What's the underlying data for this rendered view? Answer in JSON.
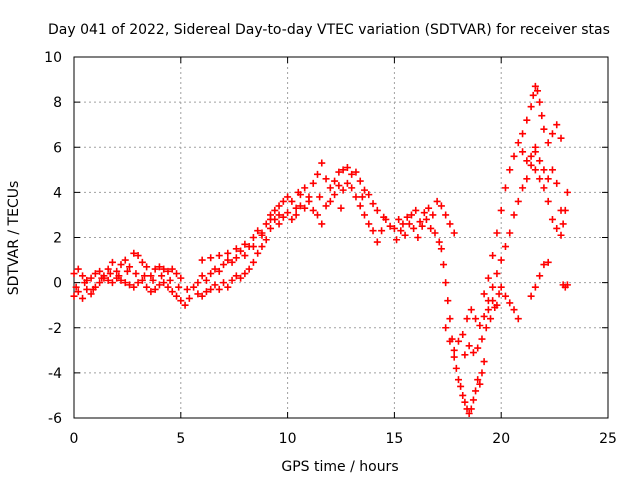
{
  "chart_data": {
    "type": "scatter",
    "title": "Day 041 of 2022, Sidereal Day-to-day VTEC variation (SDTVAR) for receiver stas",
    "xlabel": "GPS time / hours",
    "ylabel": "SDTVAR / TECUs",
    "xlim": [
      0,
      25
    ],
    "ylim": [
      -6,
      10
    ],
    "xticks": [
      "0",
      "5",
      "10",
      "15",
      "20",
      "25"
    ],
    "yticks": [
      "10",
      "8",
      "6",
      "4",
      "2",
      "0",
      "-2",
      "-4",
      "-6"
    ],
    "grid": true,
    "marker": "+",
    "color": "#ff0000",
    "series": [
      {
        "name": "SDTVAR",
        "points": [
          [
            0.0,
            0.4
          ],
          [
            0.2,
            0.6
          ],
          [
            0.4,
            0.3
          ],
          [
            0.6,
            0.1
          ],
          [
            0.8,
            0.2
          ],
          [
            1.0,
            0.4
          ],
          [
            1.2,
            0.5
          ],
          [
            1.4,
            0.2
          ],
          [
            1.6,
            0.6
          ],
          [
            1.8,
            0.9
          ],
          [
            2.0,
            0.5
          ],
          [
            2.2,
            0.8
          ],
          [
            2.4,
            1.0
          ],
          [
            2.6,
            0.7
          ],
          [
            2.8,
            1.3
          ],
          [
            3.0,
            1.2
          ],
          [
            3.2,
            0.9
          ],
          [
            3.4,
            0.7
          ],
          [
            3.6,
            0.3
          ],
          [
            3.8,
            0.6
          ],
          [
            4.0,
            0.7
          ],
          [
            4.2,
            0.6
          ],
          [
            4.4,
            0.5
          ],
          [
            4.6,
            0.6
          ],
          [
            4.8,
            0.4
          ],
          [
            5.0,
            0.2
          ],
          [
            0.0,
            -0.6
          ],
          [
            0.2,
            -0.4
          ],
          [
            0.4,
            -0.7
          ],
          [
            0.6,
            -0.3
          ],
          [
            0.8,
            -0.5
          ],
          [
            1.0,
            -0.2
          ],
          [
            1.2,
            0.0
          ],
          [
            1.4,
            0.3
          ],
          [
            1.6,
            0.1
          ],
          [
            1.8,
            0.0
          ],
          [
            2.0,
            0.2
          ],
          [
            2.2,
            0.1
          ],
          [
            2.4,
            0.0
          ],
          [
            2.6,
            -0.1
          ],
          [
            2.8,
            -0.2
          ],
          [
            3.0,
            0.0
          ],
          [
            3.2,
            0.1
          ],
          [
            3.4,
            -0.2
          ],
          [
            3.6,
            -0.4
          ],
          [
            3.8,
            -0.3
          ],
          [
            4.0,
            -0.1
          ],
          [
            4.2,
            0.0
          ],
          [
            4.4,
            -0.2
          ],
          [
            4.6,
            -0.4
          ],
          [
            4.8,
            -0.6
          ],
          [
            5.0,
            -0.8
          ],
          [
            5.2,
            -1.0
          ],
          [
            5.4,
            -0.7
          ],
          [
            0.1,
            -0.2
          ],
          [
            0.5,
            0.0
          ],
          [
            0.9,
            -0.3
          ],
          [
            1.3,
            0.2
          ],
          [
            1.7,
            0.4
          ],
          [
            2.1,
            0.3
          ],
          [
            2.5,
            0.5
          ],
          [
            2.9,
            0.4
          ],
          [
            3.3,
            0.3
          ],
          [
            3.7,
            0.1
          ],
          [
            4.1,
            0.3
          ],
          [
            4.5,
            0.1
          ],
          [
            4.9,
            -0.2
          ],
          [
            5.3,
            -0.3
          ],
          [
            5.6,
            -0.2
          ],
          [
            5.8,
            0.0
          ],
          [
            6.0,
            0.3
          ],
          [
            6.2,
            0.1
          ],
          [
            6.4,
            0.4
          ],
          [
            6.6,
            0.6
          ],
          [
            6.8,
            0.5
          ],
          [
            7.0,
            0.8
          ],
          [
            7.2,
            1.0
          ],
          [
            7.4,
            0.9
          ],
          [
            7.6,
            1.1
          ],
          [
            7.8,
            1.4
          ],
          [
            8.0,
            1.2
          ],
          [
            8.2,
            1.6
          ],
          [
            8.4,
            2.0
          ],
          [
            8.6,
            2.3
          ],
          [
            8.8,
            2.1
          ],
          [
            9.0,
            2.6
          ],
          [
            9.2,
            3.0
          ],
          [
            9.4,
            3.2
          ],
          [
            9.6,
            3.0
          ],
          [
            9.8,
            3.6
          ],
          [
            10.0,
            3.8
          ],
          [
            5.8,
            -0.5
          ],
          [
            6.0,
            -0.6
          ],
          [
            6.2,
            -0.4
          ],
          [
            6.4,
            -0.3
          ],
          [
            6.6,
            -0.1
          ],
          [
            6.8,
            -0.3
          ],
          [
            7.0,
            0.0
          ],
          [
            7.2,
            -0.2
          ],
          [
            7.4,
            0.1
          ],
          [
            7.6,
            0.3
          ],
          [
            7.8,
            0.2
          ],
          [
            8.0,
            0.4
          ],
          [
            8.2,
            0.6
          ],
          [
            8.4,
            0.9
          ],
          [
            8.6,
            1.3
          ],
          [
            8.8,
            1.6
          ],
          [
            9.0,
            1.9
          ],
          [
            9.2,
            2.4
          ],
          [
            9.4,
            2.8
          ],
          [
            9.6,
            2.6
          ],
          [
            9.8,
            2.9
          ],
          [
            10.0,
            3.1
          ],
          [
            6.0,
            1.0
          ],
          [
            6.4,
            1.1
          ],
          [
            6.8,
            1.2
          ],
          [
            7.2,
            1.3
          ],
          [
            7.6,
            1.5
          ],
          [
            8.0,
            1.7
          ],
          [
            8.4,
            1.6
          ],
          [
            8.8,
            2.2
          ],
          [
            9.2,
            2.8
          ],
          [
            9.6,
            3.4
          ],
          [
            10.2,
            3.6
          ],
          [
            10.4,
            3.3
          ],
          [
            10.6,
            3.9
          ],
          [
            10.8,
            4.2
          ],
          [
            11.0,
            3.8
          ],
          [
            11.2,
            4.4
          ],
          [
            11.4,
            4.8
          ],
          [
            11.6,
            5.3
          ],
          [
            11.8,
            4.6
          ],
          [
            12.0,
            4.2
          ],
          [
            12.2,
            4.5
          ],
          [
            12.4,
            4.9
          ],
          [
            12.6,
            5.0
          ],
          [
            12.8,
            5.1
          ],
          [
            13.0,
            4.8
          ],
          [
            13.2,
            4.9
          ],
          [
            13.4,
            4.5
          ],
          [
            13.6,
            4.1
          ],
          [
            13.8,
            3.9
          ],
          [
            14.0,
            3.5
          ],
          [
            14.2,
            3.2
          ],
          [
            10.2,
            2.8
          ],
          [
            10.4,
            3.0
          ],
          [
            10.6,
            3.4
          ],
          [
            10.8,
            3.3
          ],
          [
            11.0,
            3.6
          ],
          [
            11.2,
            3.2
          ],
          [
            11.4,
            3.0
          ],
          [
            11.6,
            2.6
          ],
          [
            11.8,
            3.4
          ],
          [
            12.0,
            3.6
          ],
          [
            12.2,
            3.9
          ],
          [
            12.4,
            4.3
          ],
          [
            12.6,
            4.1
          ],
          [
            12.8,
            4.4
          ],
          [
            13.0,
            4.2
          ],
          [
            13.2,
            3.8
          ],
          [
            13.4,
            3.4
          ],
          [
            13.6,
            3.0
          ],
          [
            13.8,
            2.6
          ],
          [
            14.0,
            2.3
          ],
          [
            14.2,
            1.8
          ],
          [
            14.4,
            2.3
          ],
          [
            14.6,
            2.8
          ],
          [
            14.8,
            2.5
          ],
          [
            10.5,
            4.0
          ],
          [
            11.5,
            3.8
          ],
          [
            12.5,
            3.3
          ],
          [
            13.5,
            3.8
          ],
          [
            14.5,
            2.9
          ],
          [
            15.0,
            2.4
          ],
          [
            15.2,
            2.8
          ],
          [
            15.4,
            2.6
          ],
          [
            15.6,
            2.9
          ],
          [
            15.8,
            3.0
          ],
          [
            16.0,
            3.2
          ],
          [
            16.2,
            2.7
          ],
          [
            16.4,
            3.1
          ],
          [
            16.6,
            3.3
          ],
          [
            16.8,
            3.0
          ],
          [
            17.0,
            3.6
          ],
          [
            17.2,
            3.4
          ],
          [
            17.4,
            3.0
          ],
          [
            17.6,
            2.6
          ],
          [
            17.8,
            2.2
          ],
          [
            15.1,
            1.9
          ],
          [
            15.3,
            2.3
          ],
          [
            15.5,
            2.1
          ],
          [
            15.7,
            2.6
          ],
          [
            15.9,
            2.4
          ],
          [
            16.1,
            2.0
          ],
          [
            16.3,
            2.5
          ],
          [
            16.5,
            2.8
          ],
          [
            16.7,
            2.4
          ],
          [
            16.9,
            2.2
          ],
          [
            17.1,
            1.8
          ],
          [
            17.2,
            1.5
          ],
          [
            17.3,
            0.8
          ],
          [
            17.4,
            0.0
          ],
          [
            17.5,
            -0.8
          ],
          [
            17.6,
            -1.6
          ],
          [
            17.7,
            -2.5
          ],
          [
            17.8,
            -3.3
          ],
          [
            17.9,
            -3.8
          ],
          [
            18.0,
            -4.3
          ],
          [
            18.1,
            -4.6
          ],
          [
            18.2,
            -5.0
          ],
          [
            18.3,
            -5.3
          ],
          [
            18.4,
            -5.6
          ],
          [
            18.5,
            -5.8
          ],
          [
            18.6,
            -5.6
          ],
          [
            18.7,
            -5.2
          ],
          [
            18.8,
            -4.8
          ],
          [
            18.9,
            -4.3
          ],
          [
            19.0,
            -4.5
          ],
          [
            19.1,
            -4.0
          ],
          [
            19.2,
            -3.5
          ],
          [
            17.4,
            -2.0
          ],
          [
            17.6,
            -2.6
          ],
          [
            17.8,
            -3.0
          ],
          [
            18.0,
            -2.6
          ],
          [
            18.2,
            -2.3
          ],
          [
            18.4,
            -1.6
          ],
          [
            18.6,
            -1.2
          ],
          [
            18.8,
            -1.6
          ],
          [
            19.0,
            -1.9
          ],
          [
            19.2,
            -1.5
          ],
          [
            19.4,
            -1.2
          ],
          [
            19.6,
            -0.8
          ],
          [
            19.8,
            -1.0
          ],
          [
            18.3,
            -3.2
          ],
          [
            18.5,
            -2.8
          ],
          [
            18.7,
            -3.1
          ],
          [
            18.9,
            -2.9
          ],
          [
            19.1,
            -2.5
          ],
          [
            19.3,
            -2.0
          ],
          [
            19.5,
            -1.6
          ],
          [
            19.7,
            -1.1
          ],
          [
            19.9,
            -0.5
          ],
          [
            19.2,
            -0.5
          ],
          [
            19.4,
            0.2
          ],
          [
            19.6,
            1.2
          ],
          [
            19.8,
            2.2
          ],
          [
            20.0,
            3.2
          ],
          [
            20.2,
            4.2
          ],
          [
            20.4,
            5.0
          ],
          [
            20.6,
            5.6
          ],
          [
            20.8,
            6.2
          ],
          [
            21.0,
            5.8
          ],
          [
            21.2,
            5.4
          ],
          [
            19.4,
            -0.8
          ],
          [
            19.6,
            -0.2
          ],
          [
            19.8,
            0.4
          ],
          [
            20.0,
            1.0
          ],
          [
            20.2,
            1.6
          ],
          [
            20.4,
            2.2
          ],
          [
            20.6,
            3.0
          ],
          [
            20.8,
            3.6
          ],
          [
            21.0,
            4.2
          ],
          [
            21.2,
            4.6
          ],
          [
            21.4,
            5.2
          ],
          [
            21.6,
            6.0
          ],
          [
            20.0,
            -0.2
          ],
          [
            20.2,
            -0.6
          ],
          [
            20.4,
            -0.9
          ],
          [
            20.6,
            -1.2
          ],
          [
            20.8,
            -1.6
          ],
          [
            21.0,
            6.6
          ],
          [
            21.2,
            7.2
          ],
          [
            21.4,
            7.8
          ],
          [
            21.5,
            8.3
          ],
          [
            21.6,
            8.7
          ],
          [
            21.7,
            8.5
          ],
          [
            21.8,
            8.0
          ],
          [
            21.9,
            7.4
          ],
          [
            22.0,
            6.8
          ],
          [
            22.2,
            6.2
          ],
          [
            22.4,
            6.6
          ],
          [
            22.6,
            7.0
          ],
          [
            22.8,
            6.4
          ],
          [
            21.6,
            5.0
          ],
          [
            21.8,
            4.6
          ],
          [
            22.0,
            4.2
          ],
          [
            22.2,
            3.6
          ],
          [
            22.4,
            2.8
          ],
          [
            22.6,
            2.4
          ],
          [
            22.8,
            2.1
          ],
          [
            22.9,
            2.6
          ],
          [
            23.0,
            3.2
          ],
          [
            23.1,
            4.0
          ],
          [
            21.4,
            5.6
          ],
          [
            21.6,
            5.8
          ],
          [
            21.8,
            5.4
          ],
          [
            22.0,
            5.0
          ],
          [
            22.2,
            4.6
          ],
          [
            22.4,
            5.0
          ],
          [
            22.6,
            4.4
          ],
          [
            22.8,
            3.2
          ],
          [
            21.4,
            -0.6
          ],
          [
            21.6,
            -0.2
          ],
          [
            21.8,
            0.3
          ],
          [
            22.0,
            0.8
          ],
          [
            22.2,
            0.9
          ],
          [
            22.9,
            -0.1
          ],
          [
            23.0,
            -0.2
          ],
          [
            23.1,
            -0.1
          ]
        ]
      }
    ]
  }
}
